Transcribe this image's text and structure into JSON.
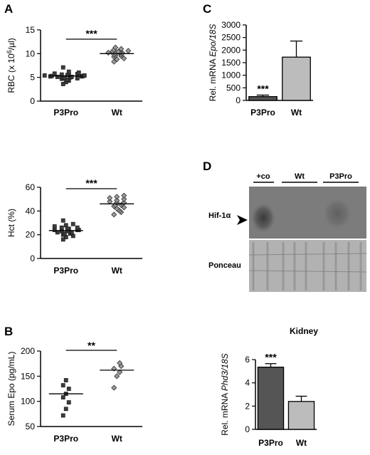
{
  "panel_labels": {
    "A": "A",
    "B": "B",
    "C": "C",
    "D": "D"
  },
  "chart_data": [
    {
      "id": "rbc",
      "type": "scatter",
      "panel": "A",
      "ylabel": "RBC (x 10⁶/µl)",
      "ylim": [
        0,
        15
      ],
      "yticks": [
        "0",
        "5",
        "10",
        "15"
      ],
      "categories": [
        "P3Pro",
        "Wt"
      ],
      "markers": [
        "square",
        "diamond"
      ],
      "means": [
        5.3,
        10.0
      ],
      "points": [
        [
          3.6,
          4.0,
          4.3,
          4.5,
          4.7,
          4.8,
          4.9,
          5.0,
          5.0,
          5.1,
          5.1,
          5.2,
          5.2,
          5.3,
          5.3,
          5.4,
          5.4,
          5.5,
          5.5,
          5.6,
          5.7,
          5.8,
          6.0,
          6.2,
          7.1
        ],
        [
          8.3,
          8.8,
          9.0,
          9.3,
          9.5,
          9.6,
          9.8,
          9.9,
          10.0,
          10.1,
          10.2,
          10.3,
          10.4,
          10.5,
          10.6,
          10.8,
          11.0,
          11.3
        ]
      ],
      "significance": "***"
    },
    {
      "id": "hct",
      "type": "scatter",
      "panel": "A",
      "ylabel": "Hct (%)",
      "ylim": [
        0,
        60
      ],
      "yticks": [
        "0",
        "20",
        "40",
        "60"
      ],
      "categories": [
        "P3Pro",
        "Wt"
      ],
      "markers": [
        "square",
        "diamond"
      ],
      "means": [
        23.5,
        46.0
      ],
      "points": [
        [
          16,
          18,
          19,
          20,
          21,
          21,
          22,
          22,
          23,
          23,
          23,
          24,
          24,
          24,
          25,
          25,
          26,
          26,
          27,
          28,
          29,
          32
        ],
        [
          37,
          39,
          40,
          41,
          42,
          43,
          44,
          45,
          45,
          46,
          47,
          47,
          48,
          49,
          50,
          51,
          52,
          53
        ]
      ],
      "significance": "***"
    },
    {
      "id": "epo",
      "type": "scatter",
      "panel": "B",
      "ylabel": "Serum Epo (pg/mL)",
      "ylim": [
        50,
        200
      ],
      "yticks": [
        "50",
        "100",
        "150",
        "200"
      ],
      "categories": [
        "P3Pro",
        "Wt"
      ],
      "markers": [
        "square",
        "diamond"
      ],
      "means": [
        115,
        162
      ],
      "points": [
        [
          72,
          85,
          98,
          108,
          115,
          125,
          132,
          142
        ],
        [
          127,
          150,
          158,
          165,
          170,
          176
        ]
      ],
      "significance": "**"
    },
    {
      "id": "epo_mrna",
      "type": "bar",
      "panel": "C",
      "ylabel_prefix": "Rel. mRNA ",
      "ylabel_italic": "Epo/18S",
      "ylim": [
        0,
        3000
      ],
      "yticks": [
        "0",
        "500",
        "1000",
        "1500",
        "2000",
        "2500",
        "3000"
      ],
      "categories": [
        "P3Pro",
        "Wt"
      ],
      "values": [
        150,
        1720
      ],
      "errors": [
        60,
        640
      ],
      "colors": [
        "#555555",
        "#bcbcbc"
      ],
      "significance": [
        "***",
        ""
      ]
    },
    {
      "id": "phd3",
      "type": "bar",
      "panel": "D",
      "title": "Kidney",
      "ylabel_prefix": "Rel. mRNA ",
      "ylabel_italic": "Phd3/18S",
      "ylim": [
        0,
        6
      ],
      "yticks": [
        "0",
        "2",
        "4",
        "6"
      ],
      "categories": [
        "P3Pro",
        "Wt"
      ],
      "values": [
        5.35,
        2.4
      ],
      "errors": [
        0.3,
        0.45
      ],
      "colors": [
        "#555555",
        "#bcbcbc"
      ],
      "significance": [
        "***",
        ""
      ]
    }
  ],
  "blot": {
    "lanes": [
      "+co",
      "Wt",
      "P3Pro"
    ],
    "row_labels": [
      "Hif-1α",
      "Ponceau"
    ]
  }
}
